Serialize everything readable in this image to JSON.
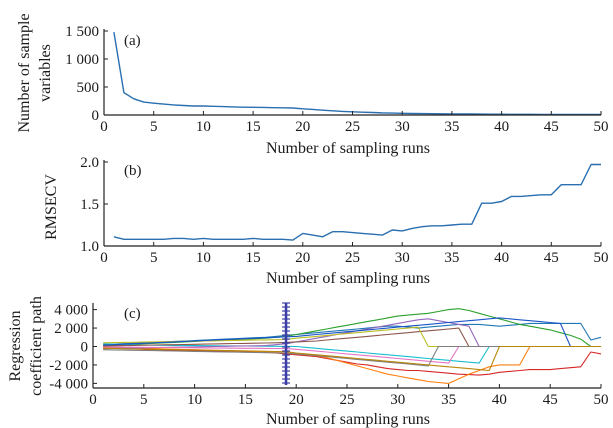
{
  "colors": {
    "series_main": "#2a6fb0",
    "axis": "#222222",
    "marker": "#3b3fa3",
    "paths": [
      "#1f77b4",
      "#d62728",
      "#2ca02c",
      "#ff7f0e",
      "#17becf",
      "#9467bd",
      "#8c564b",
      "#e377c2",
      "#bcbd22",
      "#7f7f7f",
      "#1a55c9",
      "#b8860b"
    ]
  },
  "chart_data": [
    {
      "id": "a",
      "type": "line",
      "panel_label": "(a)",
      "xlabel": "Number of sampling runs",
      "ylabel_lines": [
        "Number of sample",
        "variables"
      ],
      "xlim": [
        0,
        50
      ],
      "ylim": [
        0,
        1500
      ],
      "xticks": [
        0,
        5,
        10,
        15,
        20,
        25,
        30,
        35,
        40,
        45,
        50
      ],
      "yticks": [
        0,
        500,
        1000,
        1500
      ],
      "ytick_labels": [
        "0",
        "500",
        "1 000",
        "1 500"
      ],
      "x": [
        1,
        2,
        3,
        4,
        5,
        6,
        7,
        8,
        9,
        10,
        11,
        12,
        13,
        14,
        15,
        16,
        17,
        18,
        19,
        20,
        21,
        22,
        23,
        24,
        25,
        26,
        27,
        28,
        29,
        30,
        31,
        32,
        33,
        34,
        35,
        36,
        37,
        38,
        39,
        40,
        41,
        42,
        43,
        44,
        45,
        46,
        47,
        48,
        49,
        50
      ],
      "y": [
        1480,
        400,
        290,
        230,
        210,
        195,
        180,
        170,
        160,
        160,
        155,
        150,
        145,
        140,
        138,
        135,
        130,
        128,
        125,
        110,
        100,
        85,
        75,
        65,
        58,
        50,
        44,
        38,
        34,
        30,
        27,
        25,
        23,
        21,
        20,
        18,
        17,
        16,
        15,
        14,
        13,
        12,
        12,
        11,
        11,
        10,
        10,
        10,
        10,
        10
      ]
    },
    {
      "id": "b",
      "type": "line",
      "panel_label": "(b)",
      "xlabel": "Number of sampling runs",
      "ylabel_lines": [
        "RMSECV"
      ],
      "xlim": [
        0,
        50
      ],
      "ylim": [
        1.0,
        2.0
      ],
      "xticks": [
        0,
        5,
        10,
        15,
        20,
        25,
        30,
        35,
        40,
        45,
        50
      ],
      "yticks": [
        1.0,
        1.5,
        2.0
      ],
      "ytick_labels": [
        "1.0",
        "1.5",
        "2.0"
      ],
      "x": [
        1,
        2,
        3,
        4,
        5,
        6,
        7,
        8,
        9,
        10,
        11,
        12,
        13,
        14,
        15,
        16,
        17,
        18,
        19,
        20,
        21,
        22,
        23,
        24,
        25,
        26,
        27,
        28,
        29,
        30,
        31,
        32,
        33,
        34,
        35,
        36,
        37,
        38,
        39,
        40,
        41,
        42,
        43,
        44,
        45,
        46,
        47,
        48,
        49,
        50
      ],
      "y": [
        1.11,
        1.08,
        1.08,
        1.08,
        1.08,
        1.08,
        1.09,
        1.09,
        1.08,
        1.09,
        1.08,
        1.08,
        1.08,
        1.08,
        1.09,
        1.08,
        1.08,
        1.08,
        1.07,
        1.15,
        1.13,
        1.11,
        1.17,
        1.17,
        1.16,
        1.15,
        1.14,
        1.13,
        1.19,
        1.18,
        1.21,
        1.23,
        1.24,
        1.24,
        1.25,
        1.26,
        1.26,
        1.51,
        1.51,
        1.53,
        1.59,
        1.59,
        1.6,
        1.61,
        1.61,
        1.73,
        1.73,
        1.73,
        1.97,
        1.97
      ]
    },
    {
      "id": "c",
      "type": "line",
      "panel_label": "(c)",
      "xlabel": "Number of sampling runs",
      "ylabel_lines": [
        "Regression",
        "coefficient path"
      ],
      "xlim": [
        0,
        50
      ],
      "ylim": [
        -4500,
        4500
      ],
      "xticks": [
        0,
        5,
        10,
        15,
        20,
        25,
        30,
        35,
        40,
        45,
        50
      ],
      "yticks": [
        -4000,
        -2000,
        0,
        2000,
        4000
      ],
      "ytick_labels": [
        "-4 000",
        "-2 000",
        "0",
        "2 000",
        "4 000"
      ],
      "marker_x": 19,
      "x": [
        1,
        2,
        3,
        4,
        5,
        6,
        7,
        8,
        9,
        10,
        11,
        12,
        13,
        14,
        15,
        16,
        17,
        18,
        19,
        20,
        21,
        22,
        23,
        24,
        25,
        26,
        27,
        28,
        29,
        30,
        31,
        32,
        33,
        34,
        35,
        36,
        37,
        38,
        39,
        40,
        41,
        42,
        43,
        44,
        45,
        46,
        47,
        48,
        49,
        50
      ],
      "series": [
        {
          "y": [
            200,
            250,
            300,
            350,
            400,
            450,
            500,
            550,
            600,
            650,
            700,
            750,
            800,
            850,
            900,
            950,
            1000,
            1100,
            1200,
            1300,
            1400,
            1500,
            1600,
            1700,
            1800,
            1900,
            2000,
            2100,
            2200,
            2200,
            2100,
            2000,
            2100,
            2200,
            2300,
            2400,
            2400,
            2400,
            2300,
            2200,
            2300,
            2400,
            2500,
            2500,
            2500,
            2500,
            2500,
            2500,
            700,
            1000
          ]
        },
        {
          "y": [
            -150,
            -180,
            -200,
            -250,
            -300,
            -350,
            -380,
            -400,
            -420,
            -450,
            -480,
            -500,
            -520,
            -540,
            -560,
            -580,
            -600,
            -700,
            -800,
            -900,
            -1000,
            -1100,
            -1300,
            -1500,
            -1700,
            -1900,
            -2000,
            -2200,
            -2400,
            -2500,
            -2600,
            -2600,
            -2700,
            -2800,
            -2900,
            -3000,
            -3050,
            -3100,
            -3000,
            -2800,
            -2700,
            -2600,
            -2500,
            -2500,
            -2500,
            -2400,
            -2300,
            -2200,
            -600,
            -800
          ]
        },
        {
          "y": [
            100,
            150,
            200,
            250,
            300,
            350,
            400,
            450,
            500,
            550,
            600,
            650,
            700,
            750,
            800,
            850,
            900,
            1000,
            1100,
            1300,
            1500,
            1700,
            1900,
            2100,
            2300,
            2500,
            2700,
            2900,
            3100,
            3300,
            3400,
            3500,
            3600,
            3800,
            4000,
            4100,
            3900,
            3600,
            3300,
            3000,
            2700,
            2400,
            2200,
            2000,
            1800,
            1500,
            1200,
            800,
            0,
            0
          ]
        },
        {
          "y": [
            -100,
            -120,
            -150,
            -180,
            -200,
            -230,
            -260,
            -290,
            -320,
            -350,
            -380,
            -410,
            -440,
            -470,
            -500,
            -540,
            -580,
            -650,
            -700,
            -800,
            -900,
            -1000,
            -1200,
            -1500,
            -1800,
            -2100,
            -2400,
            -2700,
            -3000,
            -3200,
            -3400,
            -3600,
            -3800,
            -3900,
            -4000,
            -3500,
            -3000,
            -2600,
            -2200,
            -2000,
            -2000,
            -2000,
            0,
            0,
            0,
            0,
            0,
            0,
            0,
            0
          ]
        },
        {
          "y": [
            300,
            250,
            200,
            180,
            160,
            140,
            130,
            120,
            110,
            100,
            90,
            80,
            70,
            60,
            50,
            40,
            30,
            20,
            10,
            0,
            -100,
            -200,
            -300,
            -400,
            -500,
            -600,
            -700,
            -800,
            -900,
            -1000,
            -1100,
            -1200,
            -1300,
            -1400,
            -1500,
            -1600,
            -1700,
            -1800,
            0,
            0,
            0,
            0,
            0,
            0,
            0,
            0,
            0,
            0,
            0,
            0
          ]
        },
        {
          "y": [
            -250,
            -200,
            -180,
            -160,
            -140,
            -120,
            -100,
            -80,
            -60,
            -40,
            -20,
            0,
            20,
            40,
            60,
            80,
            100,
            200,
            300,
            500,
            700,
            900,
            1100,
            1300,
            1500,
            1700,
            1900,
            2100,
            2300,
            2500,
            2700,
            2900,
            3000,
            2800,
            2600,
            2400,
            2200,
            0,
            0,
            0,
            0,
            0,
            0,
            0,
            0,
            0,
            0,
            0,
            0,
            0
          ]
        },
        {
          "y": [
            50,
            80,
            100,
            120,
            140,
            160,
            180,
            200,
            220,
            240,
            260,
            280,
            300,
            320,
            340,
            360,
            380,
            400,
            450,
            500,
            550,
            600,
            700,
            800,
            900,
            1000,
            1100,
            1200,
            1300,
            1400,
            1500,
            1600,
            1700,
            1800,
            1900,
            2000,
            0,
            0,
            0,
            0,
            0,
            0,
            0,
            0,
            0,
            0,
            0,
            0,
            0,
            0
          ]
        },
        {
          "y": [
            -50,
            -60,
            -70,
            -80,
            -90,
            -100,
            -110,
            -120,
            -130,
            -140,
            -150,
            -160,
            -170,
            -180,
            -190,
            -200,
            -210,
            -220,
            -230,
            -300,
            -400,
            -500,
            -600,
            -700,
            -800,
            -900,
            -1000,
            -1100,
            -1200,
            -1300,
            -1400,
            -1500,
            -1600,
            -1700,
            -1800,
            0,
            0,
            0,
            0,
            0,
            0,
            0,
            0,
            0,
            0,
            0,
            0,
            0,
            0,
            0
          ]
        },
        {
          "y": [
            400,
            420,
            440,
            460,
            480,
            500,
            520,
            540,
            560,
            580,
            600,
            620,
            640,
            660,
            680,
            700,
            720,
            740,
            760,
            900,
            1000,
            1100,
            1200,
            1300,
            1400,
            1500,
            1600,
            1700,
            1800,
            1900,
            2000,
            2100,
            0,
            0,
            0,
            0,
            0,
            0,
            0,
            0,
            0,
            0,
            0,
            0,
            0,
            0,
            0,
            0,
            0,
            0
          ]
        },
        {
          "y": [
            -350,
            -370,
            -390,
            -410,
            -430,
            -450,
            -470,
            -490,
            -510,
            -530,
            -550,
            -570,
            -590,
            -610,
            -630,
            -650,
            -670,
            -690,
            -710,
            -800,
            -900,
            -1000,
            -1100,
            -1200,
            -1300,
            -1400,
            -1500,
            -1600,
            -1700,
            -1800,
            -1900,
            -2000,
            -2100,
            0,
            0,
            0,
            0,
            0,
            0,
            0,
            0,
            0,
            0,
            0,
            0,
            0,
            0,
            0,
            0,
            0
          ]
        },
        {
          "y": [
            150,
            200,
            250,
            300,
            350,
            400,
            450,
            500,
            550,
            600,
            650,
            700,
            750,
            800,
            850,
            900,
            950,
            1000,
            1050,
            1100,
            1200,
            1300,
            1400,
            1500,
            1600,
            1700,
            1800,
            1900,
            2000,
            2100,
            2200,
            2300,
            2400,
            2500,
            2600,
            2700,
            2800,
            2900,
            3000,
            3100,
            3000,
            2900,
            2800,
            2700,
            2600,
            2500,
            0,
            0,
            0,
            0
          ]
        },
        {
          "y": [
            -200,
            -220,
            -240,
            -260,
            -280,
            -300,
            -320,
            -340,
            -360,
            -380,
            -400,
            -420,
            -440,
            -460,
            -480,
            -500,
            -520,
            -540,
            -560,
            -700,
            -800,
            -900,
            -1000,
            -1100,
            -1200,
            -1300,
            -1400,
            -1500,
            -1600,
            -1700,
            -1800,
            -1900,
            -2000,
            -2100,
            -2200,
            -2300,
            -2400,
            -2500,
            -2600,
            0,
            0,
            0,
            0,
            0,
            0,
            0,
            0,
            0,
            0,
            0
          ]
        }
      ]
    }
  ]
}
